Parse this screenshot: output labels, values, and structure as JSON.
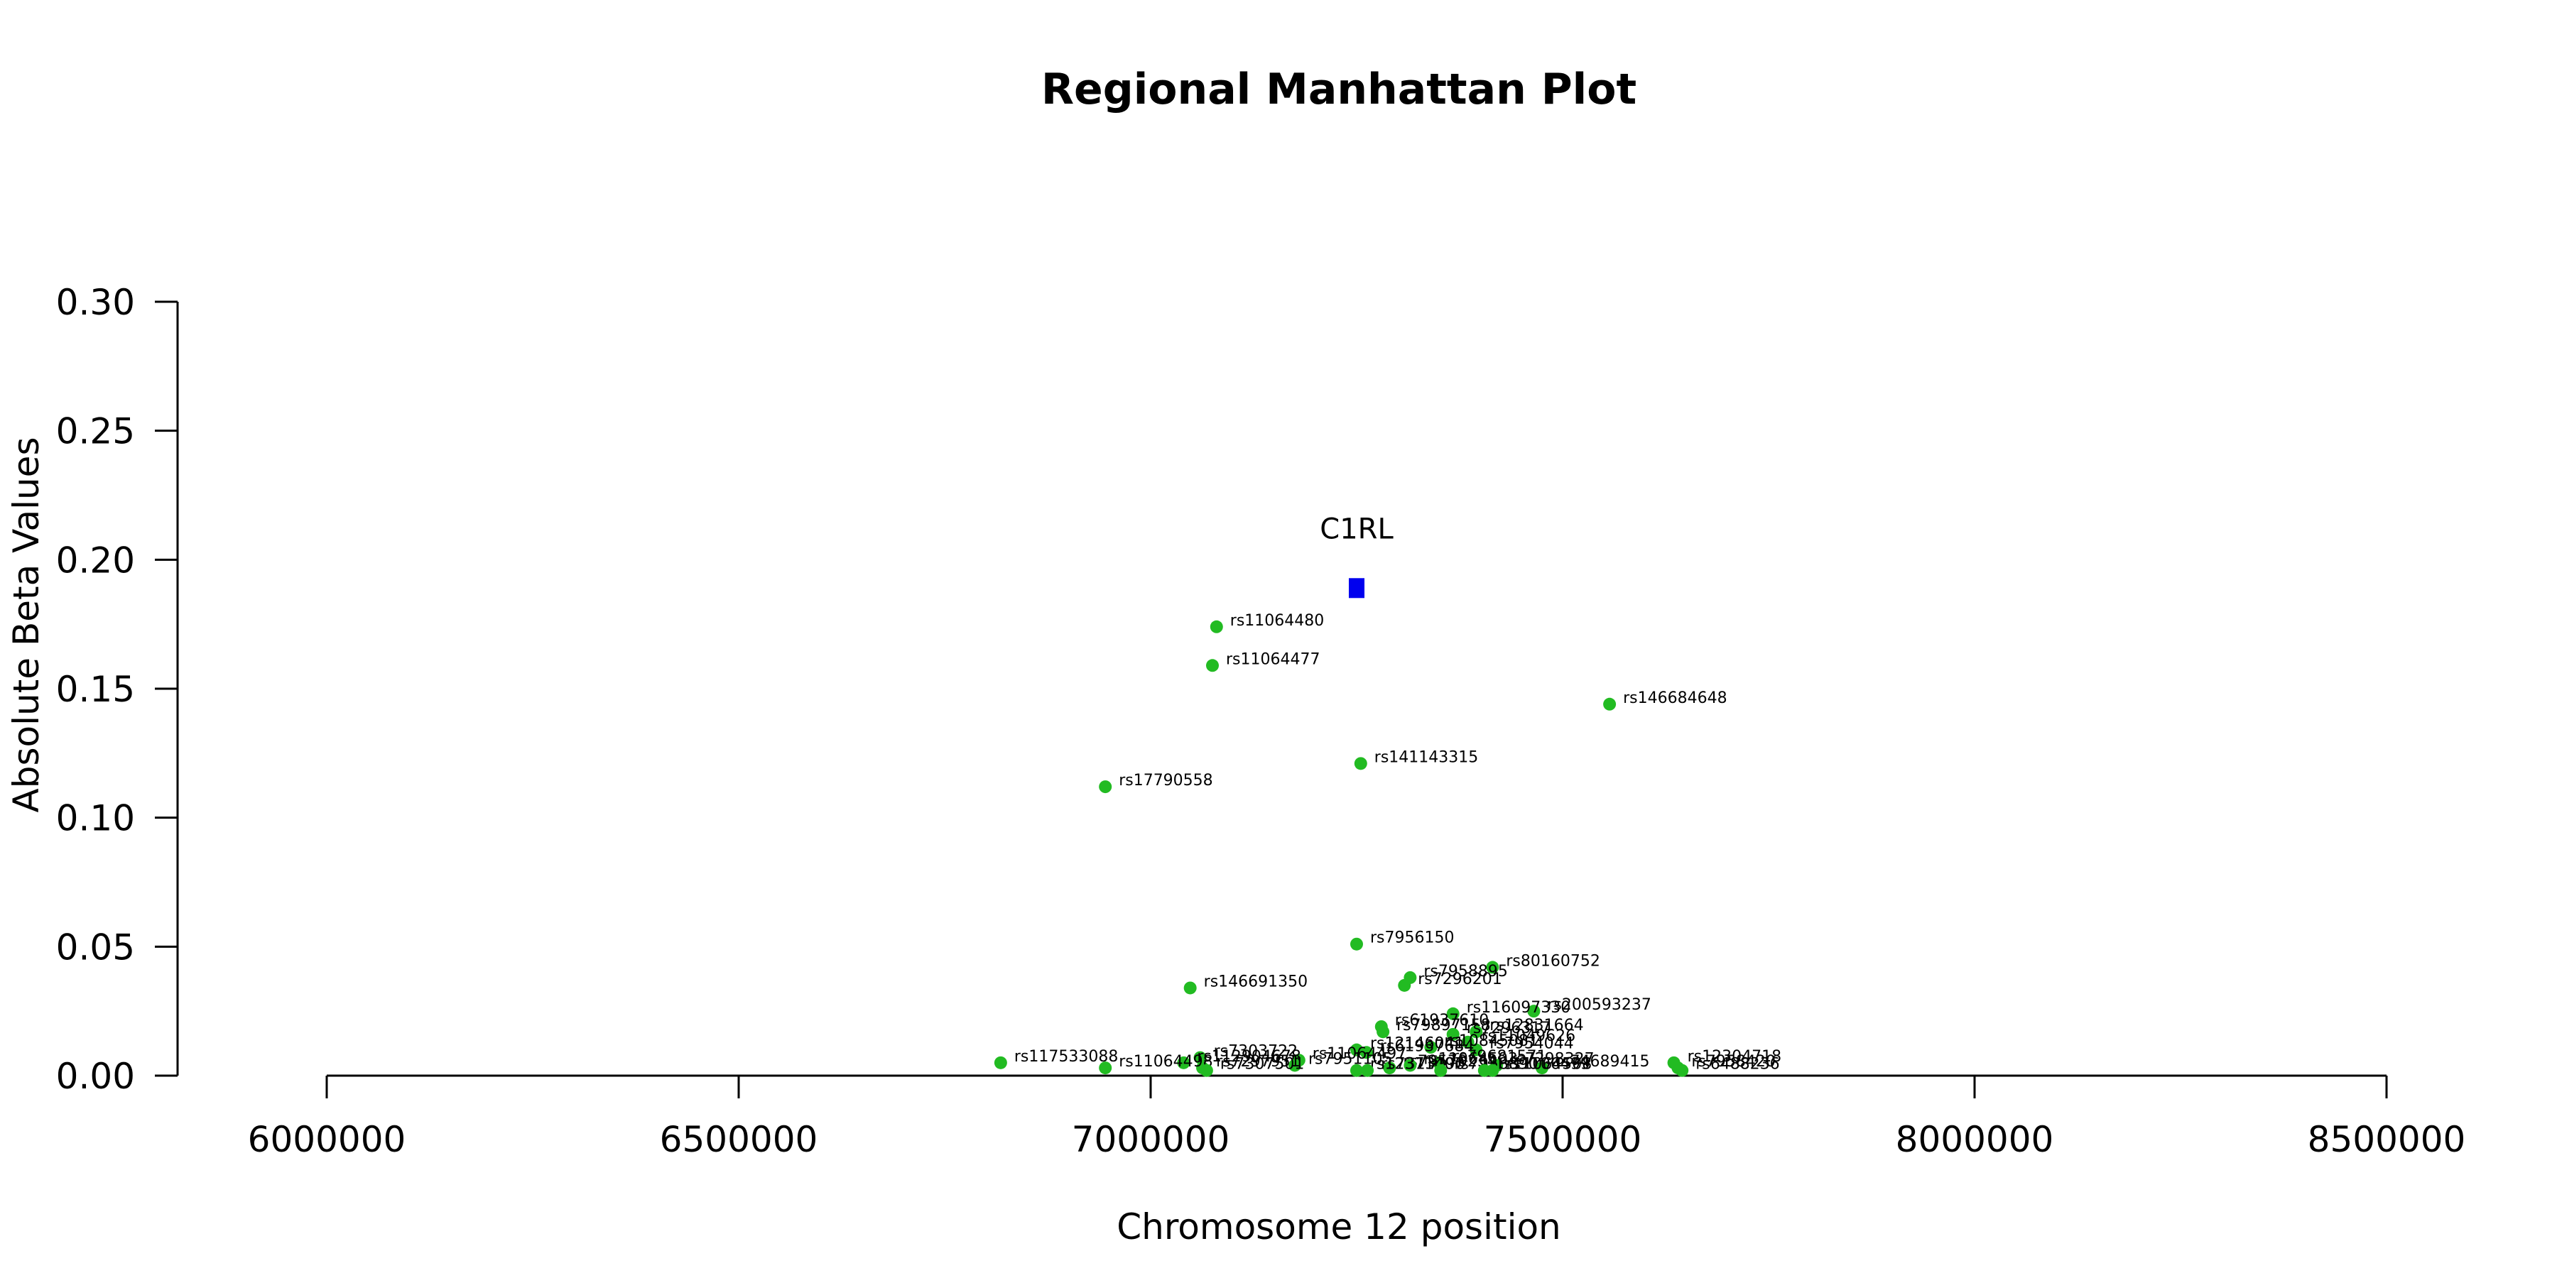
{
  "chart_data": {
    "type": "scatter",
    "title": "Regional Manhattan Plot",
    "xlabel": "Chromosome 12 position",
    "ylabel": "Absolute Beta Values",
    "xlim": [
      6000000,
      8500000
    ],
    "ylim": [
      0,
      0.3
    ],
    "x_ticks": [
      "6000000",
      "6500000",
      "7000000",
      "7500000",
      "8000000",
      "8500000"
    ],
    "y_ticks": [
      "0.00",
      "0.05",
      "0.10",
      "0.15",
      "0.20",
      "0.25",
      "0.30"
    ],
    "point_color": "#22bb22",
    "gene_color": "#0000ee",
    "gene": {
      "name": "C1RL",
      "x": 7250000,
      "y": 0.189
    },
    "points": [
      {
        "label": "rs11064480",
        "x": 7080000,
        "y": 0.174
      },
      {
        "label": "rs11064477",
        "x": 7075000,
        "y": 0.159
      },
      {
        "label": "rs146684648",
        "x": 7557000,
        "y": 0.144
      },
      {
        "label": "rs141143315",
        "x": 7255000,
        "y": 0.121
      },
      {
        "label": "rs17790558",
        "x": 6945000,
        "y": 0.112
      },
      {
        "label": "rs7956150",
        "x": 7250000,
        "y": 0.051
      },
      {
        "label": "rs80160752",
        "x": 7415000,
        "y": 0.042
      },
      {
        "label": "rs7958895",
        "x": 7315000,
        "y": 0.038
      },
      {
        "label": "rs7296201",
        "x": 7308000,
        "y": 0.035
      },
      {
        "label": "rs146691350",
        "x": 7048000,
        "y": 0.034
      },
      {
        "label": "rs200593237",
        "x": 7465000,
        "y": 0.025
      },
      {
        "label": "rs116097330",
        "x": 7367000,
        "y": 0.024
      },
      {
        "label": "rs61937610",
        "x": 7280000,
        "y": 0.019
      },
      {
        "label": "rs79897158",
        "x": 7282000,
        "y": 0.017
      },
      {
        "label": "rs12831664",
        "x": 7395000,
        "y": 0.017
      },
      {
        "label": "rs7296317",
        "x": 7367000,
        "y": 0.016
      },
      {
        "label": "rs11049626",
        "x": 7385000,
        "y": 0.013
      },
      {
        "label": "rs7954044",
        "x": 7395000,
        "y": 0.01
      },
      {
        "label": "rs10845081",
        "x": 7340000,
        "y": 0.011
      },
      {
        "label": "rs12146041",
        "x": 7250000,
        "y": 0.01
      },
      {
        "label": "rs61937684",
        "x": 7262000,
        "y": 0.009
      },
      {
        "label": "rs7303722",
        "x": 7060000,
        "y": 0.007
      },
      {
        "label": "rs11064497",
        "x": 7180000,
        "y": 0.006
      },
      {
        "label": "rs117533088",
        "x": 6818000,
        "y": 0.005
      },
      {
        "label": "rs112904678",
        "x": 7040000,
        "y": 0.005
      },
      {
        "label": "rs12304718",
        "x": 7635000,
        "y": 0.005
      },
      {
        "label": "rs79681571",
        "x": 7350000,
        "y": 0.005
      },
      {
        "label": "rs7298327",
        "x": 7420000,
        "y": 0.004
      },
      {
        "label": "rs7951105",
        "x": 7175000,
        "y": 0.004
      },
      {
        "label": "rs79570234",
        "x": 7290000,
        "y": 0.003
      },
      {
        "label": "rs11064503",
        "x": 7315000,
        "y": 0.004
      },
      {
        "label": "rs7958420",
        "x": 7640000,
        "y": 0.003
      },
      {
        "label": "rs7297951",
        "x": 7063000,
        "y": 0.003
      },
      {
        "label": "rs74689415",
        "x": 7475000,
        "y": 0.003
      },
      {
        "label": "rs11064498",
        "x": 6945000,
        "y": 0.003
      },
      {
        "label": "rs7307501",
        "x": 7068000,
        "y": 0.002
      },
      {
        "label": "rs12371407",
        "x": 7250000,
        "y": 0.002
      },
      {
        "label": "rs7313790",
        "x": 7263000,
        "y": 0.002
      },
      {
        "label": "rs7958890",
        "x": 7352000,
        "y": 0.002
      },
      {
        "label": "rs11064508",
        "x": 7405000,
        "y": 0.002
      },
      {
        "label": "rs1106499",
        "x": 7415000,
        "y": 0.002
      },
      {
        "label": "rs6488236",
        "x": 7645000,
        "y": 0.002
      }
    ]
  }
}
